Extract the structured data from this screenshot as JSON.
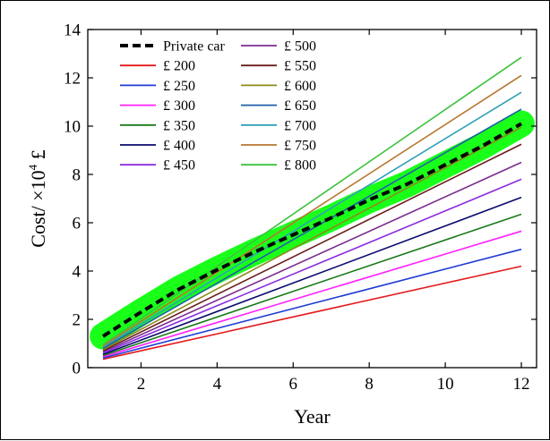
{
  "chart_data": {
    "type": "line",
    "xlabel": "Year",
    "ylabel_parts": [
      "Cost/ ×10",
      "4",
      " £"
    ],
    "xlim": [
      0.6,
      12.4
    ],
    "ylim": [
      0,
      14
    ],
    "x_ticks": [
      2,
      4,
      6,
      8,
      10,
      12
    ],
    "y_ticks": [
      0,
      2,
      4,
      6,
      8,
      10,
      12,
      14
    ],
    "x": [
      1,
      12
    ],
    "reference_series": {
      "name": "Private car",
      "x": [
        1,
        2,
        3,
        4,
        5,
        6,
        7,
        8,
        9,
        10,
        11,
        12
      ],
      "values": [
        1.3,
        2.3,
        3.25,
        4.05,
        4.8,
        5.5,
        6.2,
        6.95,
        7.6,
        8.4,
        9.2,
        10.1
      ],
      "color": "#000000",
      "style": "dashed",
      "highlight_band": {
        "color": "#1aff1a",
        "width_data": 0.55
      }
    },
    "series": [
      {
        "name": "£ 200",
        "values": [
          0.35,
          4.2
        ],
        "color": "#e41a1c"
      },
      {
        "name": "£ 250",
        "values": [
          0.4,
          4.9
        ],
        "color": "#1f3cd4"
      },
      {
        "name": "£ 300",
        "values": [
          0.45,
          5.65
        ],
        "color": "#ff1fff"
      },
      {
        "name": "£ 350",
        "values": [
          0.5,
          6.35
        ],
        "color": "#1a7a1a"
      },
      {
        "name": "£ 400",
        "values": [
          0.55,
          7.05
        ],
        "color": "#0a0a6e"
      },
      {
        "name": "£ 450",
        "values": [
          0.6,
          7.8
        ],
        "color": "#8a2be2"
      },
      {
        "name": "£ 500",
        "values": [
          0.65,
          8.5
        ],
        "color": "#7b2d8e"
      },
      {
        "name": "£ 550",
        "values": [
          0.7,
          9.25
        ],
        "color": "#6b1d1d"
      },
      {
        "name": "£ 600",
        "values": [
          0.75,
          9.95
        ],
        "color": "#8b8b1a"
      },
      {
        "name": "£ 650",
        "values": [
          0.8,
          10.7
        ],
        "color": "#1f5fa8"
      },
      {
        "name": "£ 700",
        "values": [
          0.85,
          11.4
        ],
        "color": "#2fa0b8"
      },
      {
        "name": "£ 750",
        "values": [
          0.9,
          12.1
        ],
        "color": "#b8762f"
      },
      {
        "name": "£ 800",
        "values": [
          0.95,
          12.85
        ],
        "color": "#3cc23c"
      }
    ],
    "legend_placement": "top-left",
    "grid": false
  }
}
